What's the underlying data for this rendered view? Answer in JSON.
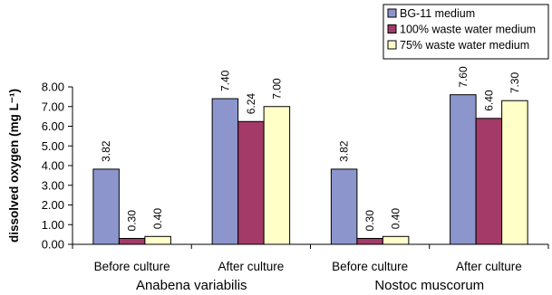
{
  "chart_data": {
    "type": "bar",
    "ylabel": "dissolved oxygen (mg L⁻¹)",
    "ylim": [
      0,
      8
    ],
    "yticks": [
      "0.00",
      "1.00",
      "2.00",
      "3.00",
      "4.00",
      "5.00",
      "6.00",
      "7.00",
      "8.00"
    ],
    "categories": [
      "Before culture",
      "After culture",
      "Before culture",
      "After culture"
    ],
    "groups": [
      "Anabena variabilis",
      "Nostoc muscorum"
    ],
    "series": [
      {
        "name": "BG-11 medium",
        "color": "#8c96cc",
        "values": [
          3.82,
          7.4,
          3.82,
          7.6
        ],
        "labels": [
          "3.82",
          "7.40",
          "3.82",
          "7.60"
        ]
      },
      {
        "name": "100% waste water medium",
        "color": "#a33a68",
        "values": [
          0.3,
          6.24,
          0.3,
          6.4
        ],
        "labels": [
          "0.30",
          "6.24",
          "0.30",
          "6.40"
        ]
      },
      {
        "name": "75% waste water medium",
        "color": "#ffffc8",
        "values": [
          0.4,
          7.0,
          0.4,
          7.3
        ],
        "labels": [
          "0.40",
          "7.00",
          "0.40",
          "7.30"
        ]
      }
    ],
    "legend_position": "top-right",
    "grid": false
  }
}
